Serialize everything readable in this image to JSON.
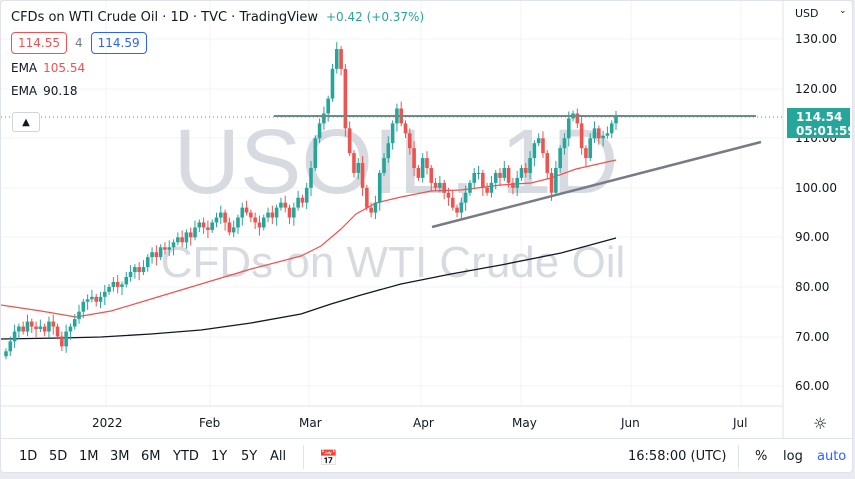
{
  "header": {
    "title": "CFDs on WTI Crude Oil · 1D · TVC · TradingView",
    "change": "+0.42 (+0.37%)",
    "bid": "114.55",
    "spread": "4",
    "ask": "114.59",
    "ema1_label": "EMA",
    "ema1_value": "105.54",
    "ema2_label": "EMA",
    "ema2_value": "90.18",
    "collapse_icon": "chevron-up-icon"
  },
  "watermark": {
    "symbol": "USOIL, 1D",
    "description": "CFDs on WTI Crude Oil"
  },
  "price_axis": {
    "currency": "USD",
    "labels": [
      "130.00",
      "120.00",
      "110.00",
      "100.00",
      "90.00",
      "80.00",
      "70.00",
      "60.00"
    ],
    "last_price": "114.54",
    "countdown": "05:01:59"
  },
  "time_axis": {
    "labels": [
      "2022",
      "Feb",
      "Mar",
      "Apr",
      "May",
      "Jun",
      "Jul"
    ]
  },
  "toolbar": {
    "timeframes": [
      "1D",
      "5D",
      "1M",
      "3M",
      "6M",
      "YTD",
      "1Y",
      "5Y",
      "All"
    ],
    "goto_icon": "calendar-range-icon",
    "clock": "16:58:00 (UTC)",
    "percent": "%",
    "log": "log",
    "auto": "auto"
  },
  "colors": {
    "up": "#26a69a",
    "down": "#ef5350",
    "ema_fast": "#ef5350",
    "ema_slow": "#131722",
    "trendline": "#787b86",
    "resistance": "#6f8a8a",
    "accent": "#2962ff"
  },
  "chart_data": {
    "type": "candlestick",
    "title": "CFDs on WTI Crude Oil · 1D · TVC",
    "xlabel": "",
    "ylabel": "USD",
    "ylim": [
      55,
      133
    ],
    "x_ticks": [
      "2022",
      "Feb",
      "Mar",
      "Apr",
      "May",
      "Jun",
      "Jul"
    ],
    "y_ticks": [
      60,
      70,
      80,
      90,
      100,
      110,
      120,
      130
    ],
    "last_price": 114.54,
    "series": [
      {
        "name": "EMA (fast)",
        "color": "#ef5350",
        "value": 105.54,
        "points": [
          [
            0,
            76
          ],
          [
            80,
            74
          ],
          [
            160,
            79
          ],
          [
            250,
            86
          ],
          [
            310,
            89
          ],
          [
            340,
            94
          ],
          [
            360,
            99
          ],
          [
            410,
            101
          ],
          [
            470,
            101
          ],
          [
            520,
            102
          ],
          [
            560,
            104
          ],
          [
            615,
            105.5
          ]
        ]
      },
      {
        "name": "EMA (slow)",
        "color": "#131722",
        "value": 90.18,
        "points": [
          [
            0,
            70
          ],
          [
            100,
            70.5
          ],
          [
            200,
            72.5
          ],
          [
            300,
            76
          ],
          [
            340,
            79
          ],
          [
            420,
            83.5
          ],
          [
            500,
            87
          ],
          [
            615,
            90.2
          ]
        ]
      },
      {
        "name": "Resistance",
        "type": "horizontal",
        "value": 114.8,
        "from": "Mar",
        "to": "Jul"
      },
      {
        "name": "Ascending trendline",
        "type": "line",
        "from": [
          431,
          92.2
        ],
        "to": [
          760,
          109.5
        ]
      }
    ],
    "candles_summary": {
      "start": {
        "period": "Dec 2021",
        "approx": 68
      },
      "peak": {
        "period": "early Mar",
        "high": 129.5
      },
      "march_low": {
        "low": 94.5
      },
      "april_low": {
        "low": 93
      },
      "may_low": {
        "low": 98
      },
      "last": {
        "open": 110.5,
        "close": 114.54,
        "high": 115.3
      }
    }
  }
}
